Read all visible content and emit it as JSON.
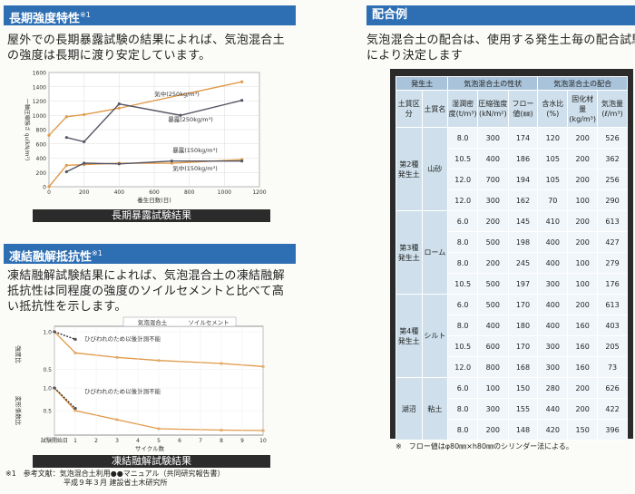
{
  "left": {
    "sec1": {
      "title": "長期強度特性",
      "sup": "※1",
      "para": [
        "屋外での長期暴露試験の結果によれば、気泡混合土",
        "の強度は長期に渡り安定しています。"
      ],
      "caption": "長期暴露試験結果"
    },
    "sec2": {
      "title": "凍結融解抵抗性",
      "sup": "※1",
      "para": [
        "凍結融解試験結果によれば、気泡混合土の凍結融解",
        "抵抗性は同程度の強度のソイルセメントと比べて高",
        "い抵抗性を示します。"
      ],
      "caption": "凍結融解試験結果"
    },
    "footnote": [
      "※1　参考文献：気泡混合土利用●●マニュアル（共同研究報告書）",
      "平成９年３月 建設省土木研究所"
    ]
  },
  "right": {
    "title": "配合例",
    "para": [
      "気泡混合土の配合は、使用する発生土毎の配合試験",
      "により決定します"
    ],
    "table": {
      "h_top": [
        "発生土",
        "気泡混合土の性状",
        "気泡混合土の配合"
      ],
      "h_sub": [
        "土質区分",
        "土質名",
        "湿潤密度(t/m³)",
        "圧縮強度(kN/m²)",
        "フロー値(㎜)",
        "含水比(%)",
        "固化材量(kg/m³)",
        "気泡量(ℓ/m³)"
      ],
      "groups": [
        {
          "cat": "第2種発生土",
          "name": "山砂",
          "rows": [
            [
              "8.0",
              "300",
              "174",
              "120",
              "200",
              "526"
            ],
            [
              "10.5",
              "400",
              "186",
              "105",
              "200",
              "362"
            ],
            [
              "12.0",
              "700",
              "194",
              "105",
              "200",
              "256"
            ],
            [
              "12.0",
              "300",
              "162",
              "70",
              "100",
              "290"
            ]
          ]
        },
        {
          "cat": "第3種発生土",
          "name": "ローム",
          "rows": [
            [
              "6.0",
              "200",
              "145",
              "410",
              "200",
              "613"
            ],
            [
              "8.0",
              "500",
              "198",
              "400",
              "200",
              "427"
            ],
            [
              "8.0",
              "200",
              "245",
              "400",
              "100",
              "279"
            ],
            [
              "10.5",
              "500",
              "197",
              "300",
              "100",
              "176"
            ]
          ]
        },
        {
          "cat": "第4種発生土",
          "name": "シルト",
          "rows": [
            [
              "6.0",
              "500",
              "170",
              "400",
              "200",
              "613"
            ],
            [
              "8.0",
              "400",
              "180",
              "400",
              "160",
              "403"
            ],
            [
              "10.5",
              "600",
              "170",
              "300",
              "160",
              "205"
            ],
            [
              "12.0",
              "800",
              "168",
              "300",
              "160",
              "73"
            ]
          ]
        },
        {
          "cat": "湖沼",
          "name": "粘土",
          "rows": [
            [
              "6.0",
              "100",
              "150",
              "280",
              "200",
              "626"
            ],
            [
              "8.0",
              "300",
              "155",
              "440",
              "200",
              "422"
            ],
            [
              "8.0",
              "200",
              "148",
              "420",
              "150",
              "396"
            ]
          ]
        }
      ],
      "note": "※　フロー値はφ80㎜×h80㎜のシリンダー法による。"
    }
  },
  "chart_data": [
    {
      "type": "line",
      "title": "",
      "xlabel": "養生日数(日)",
      "ylabel": "一軸圧縮強さ qu(kN/m²)",
      "xlim": [
        0,
        1200
      ],
      "ylim": [
        0,
        1600
      ],
      "xticks": [
        "0",
        "200",
        "400",
        "600",
        "800",
        "1000",
        "1200"
      ],
      "yticks": [
        "0",
        "200",
        "400",
        "600",
        "800",
        "1000",
        "1200",
        "1400",
        "1600"
      ],
      "series": [
        {
          "name": "気中(250kg/m³)",
          "color": "#e09a4a",
          "x": [
            0,
            100,
            200,
            400,
            1100
          ],
          "y": [
            720,
            980,
            1010,
            1100,
            1470
          ]
        },
        {
          "name": "暴露(250kg/m³)",
          "color": "#555566",
          "x": [
            100,
            200,
            400,
            750,
            1100
          ],
          "y": [
            690,
            630,
            1160,
            1000,
            1210
          ]
        },
        {
          "name": "暴露(150kg/m³)",
          "color": "#e09a4a",
          "x": [
            0,
            100,
            200,
            400,
            700,
            1100
          ],
          "y": [
            0,
            300,
            310,
            330,
            330,
            380
          ]
        },
        {
          "name": "気中(150kg/m³)",
          "color": "#555566",
          "x": [
            100,
            200,
            400,
            700,
            1100
          ],
          "y": [
            210,
            330,
            320,
            360,
            360
          ]
        }
      ]
    },
    {
      "type": "line",
      "title": "",
      "xlabel": "サイクル数",
      "ylabel_top": "強度比",
      "ylabel_bottom": "変形係数比",
      "xlim": [
        0,
        10
      ],
      "xticks": [
        "試験開始日",
        "1",
        "2",
        "3",
        "4",
        "5",
        "6",
        "7",
        "8",
        "9",
        "10"
      ],
      "legend": [
        "気泡混合土",
        "ソイルセメント"
      ],
      "annotation": "ひびわれのため以後計測不能",
      "upper": {
        "ylim": [
          0.4,
          1.0
        ],
        "yticks": [
          "1.0",
          "0.5"
        ],
        "series": [
          {
            "name": "気泡混合土",
            "color": "#e09a4a",
            "x": [
              0,
              1,
              3,
              5,
              8,
              10
            ],
            "y": [
              1.0,
              0.72,
              0.66,
              0.62,
              0.58,
              0.54
            ]
          },
          {
            "name": "ソイルセメント",
            "color": "#222222",
            "x": [
              0,
              1
            ],
            "y": [
              1.0,
              0.9
            ]
          }
        ]
      },
      "lower": {
        "ylim": [
          0.0,
          1.0
        ],
        "yticks": [
          "1.0",
          "0.5"
        ],
        "series": [
          {
            "name": "気泡混合土",
            "color": "#e09a4a",
            "x": [
              0,
              1,
              3,
              5,
              8,
              10
            ],
            "y": [
              1.0,
              0.5,
              0.3,
              0.1,
              0.07,
              0.06
            ]
          },
          {
            "name": "ソイルセメント",
            "color": "#222222",
            "x": [
              0,
              1
            ],
            "y": [
              1.0,
              0.55
            ]
          }
        ]
      }
    }
  ]
}
